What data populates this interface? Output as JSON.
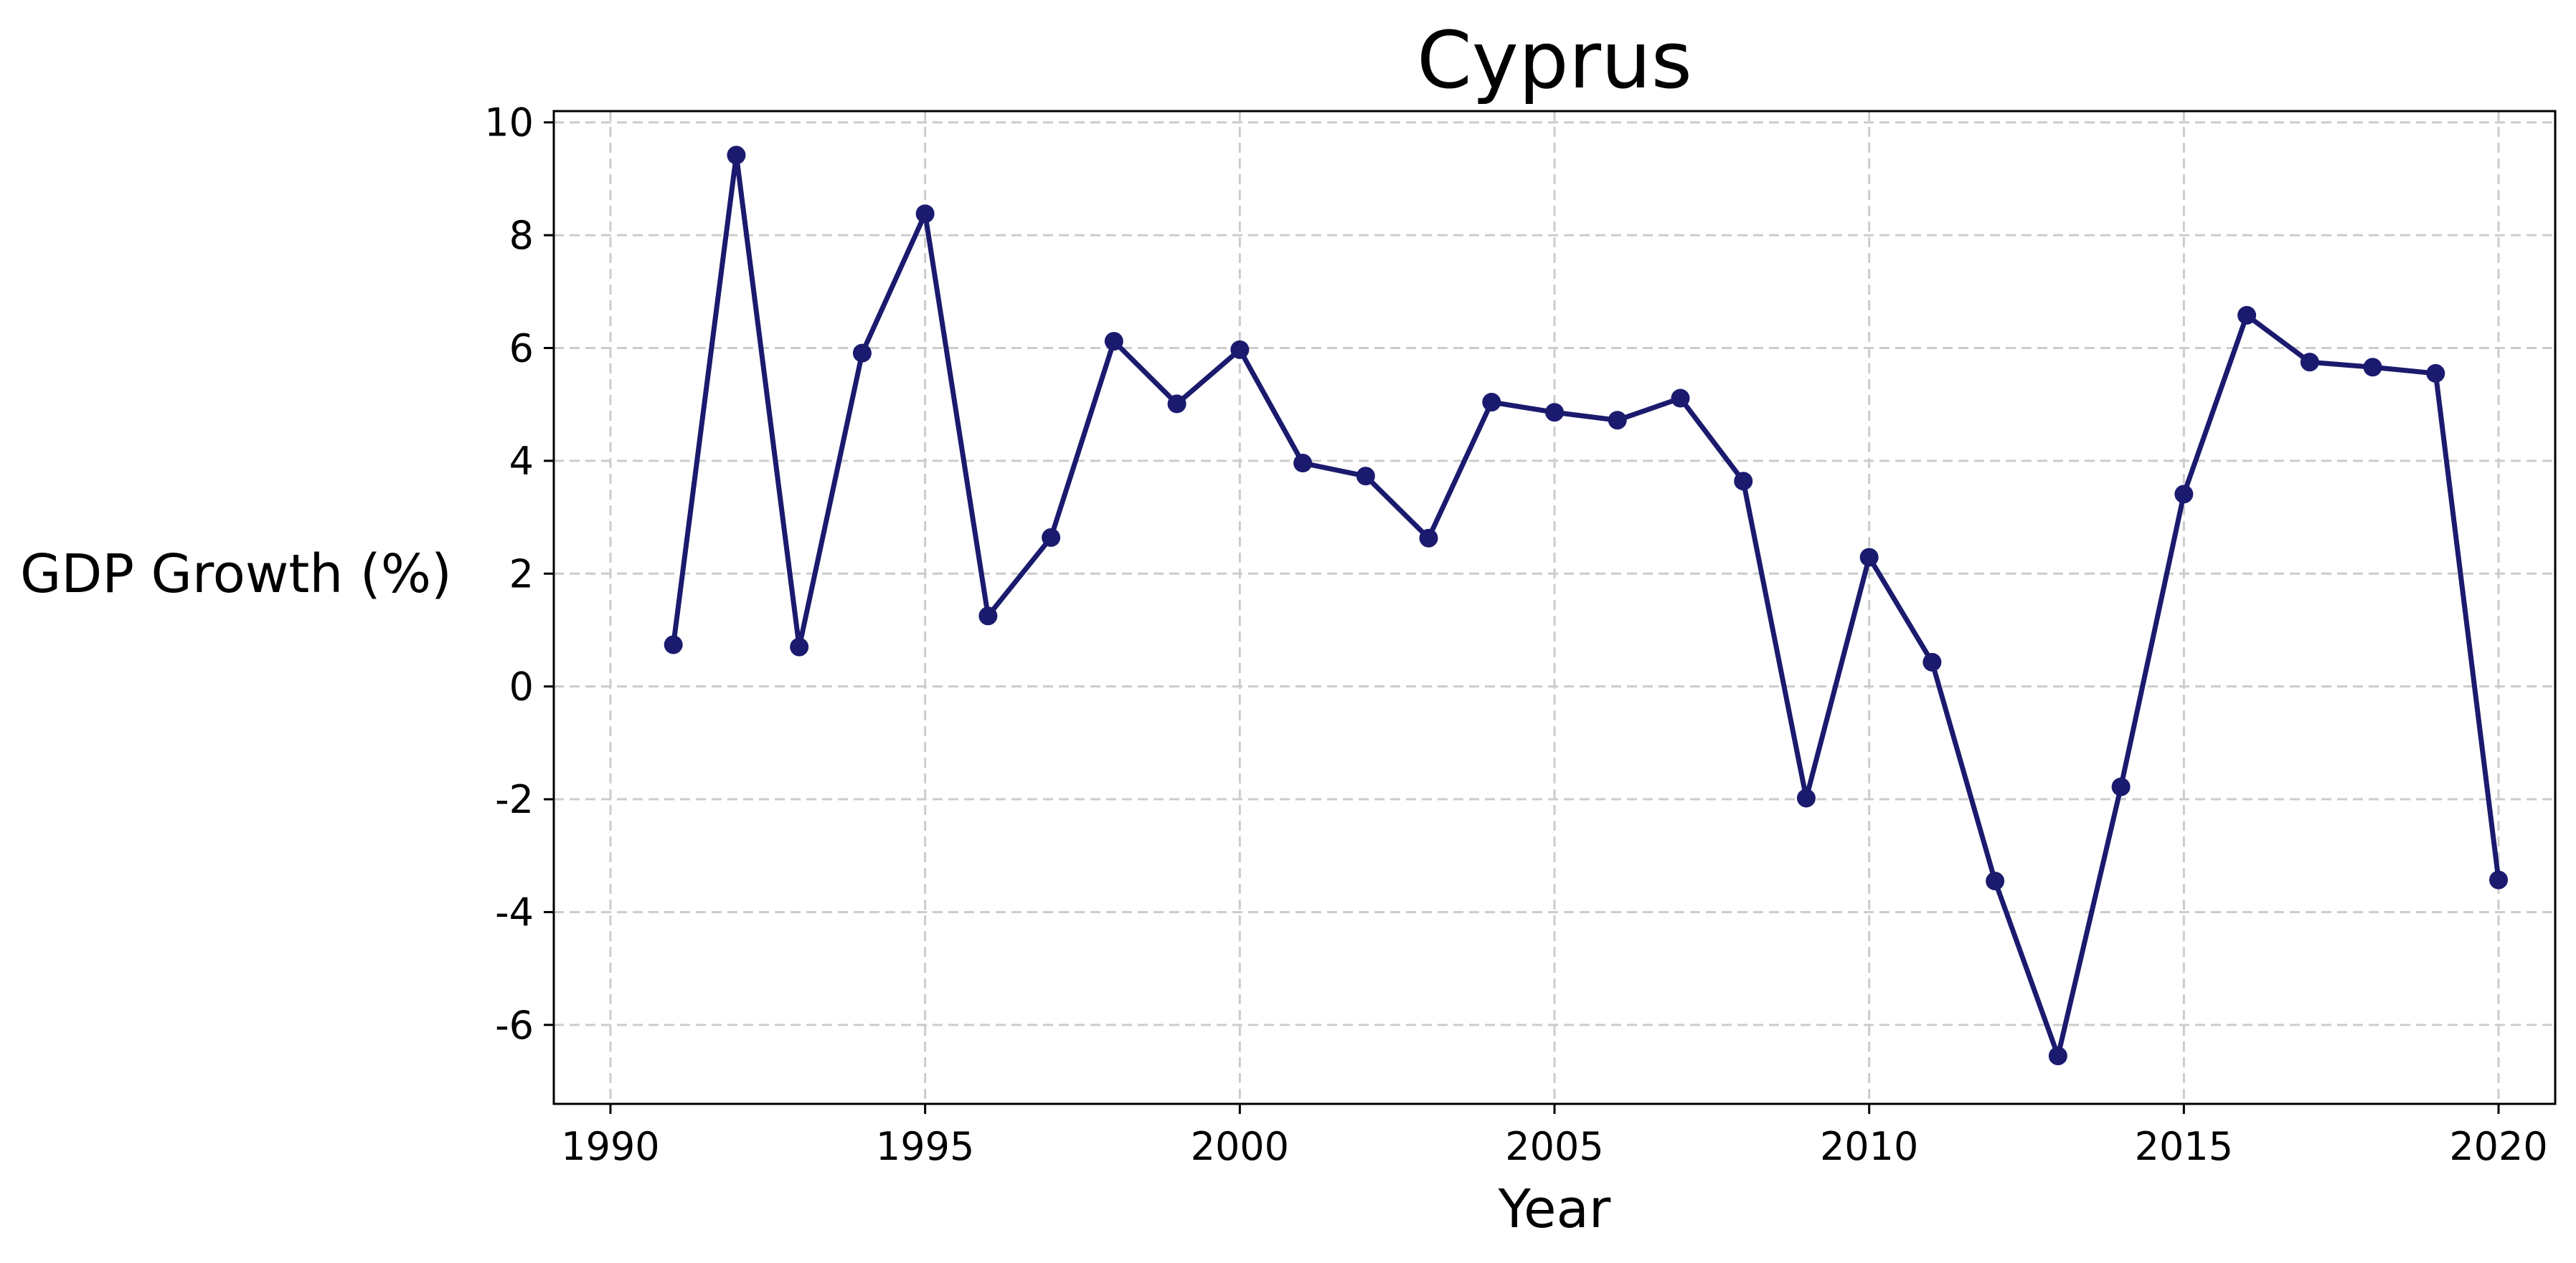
{
  "chart_data": {
    "type": "line",
    "title": "Cyprus",
    "xlabel": "Year",
    "ylabel": "GDP Growth (%)",
    "xlim": [
      1989.1,
      2020.9
    ],
    "ylim": [
      -7.4,
      10.2
    ],
    "xticks": [
      1990,
      1995,
      2000,
      2005,
      2010,
      2015,
      2020
    ],
    "yticks": [
      -6,
      -4,
      -2,
      0,
      2,
      4,
      6,
      8,
      10
    ],
    "grid": true,
    "color": "#1a1a6e",
    "series": [
      {
        "name": "",
        "x": [
          1991,
          1992,
          1993,
          1994,
          1995,
          1996,
          1997,
          1998,
          1999,
          2000,
          2001,
          2002,
          2003,
          2004,
          2005,
          2006,
          2007,
          2008,
          2009,
          2010,
          2011,
          2012,
          2013,
          2014,
          2015,
          2016,
          2017,
          2018,
          2019,
          2020
        ],
        "y": [
          0.74,
          9.42,
          0.7,
          5.91,
          8.38,
          1.25,
          2.64,
          6.12,
          5.01,
          5.97,
          3.96,
          3.73,
          2.63,
          5.04,
          4.86,
          4.72,
          5.11,
          3.64,
          -1.98,
          2.29,
          0.43,
          -3.45,
          -6.55,
          -1.78,
          3.41,
          6.58,
          5.75,
          5.66,
          5.55,
          -3.43
        ]
      }
    ]
  }
}
